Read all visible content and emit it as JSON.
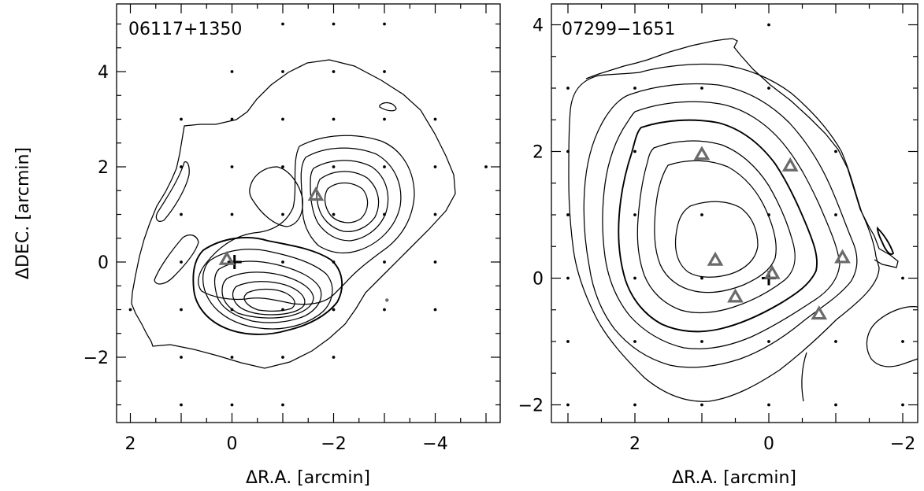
{
  "chart_data": [
    {
      "type": "contour",
      "title": "06117+1350",
      "xlabel": "ΔR.A. [arcmin]",
      "ylabel": "ΔDEC. [arcmin]",
      "xlim": [
        2.3,
        -5.3
      ],
      "ylim": [
        -3.2,
        5.3
      ],
      "x_ticks": [
        2,
        0,
        -2,
        -4
      ],
      "x_tick_labels": [
        "2",
        "0",
        "−2",
        "−4"
      ],
      "y_ticks": [
        -2,
        0,
        2,
        4
      ],
      "y_tick_labels": [
        "−2",
        "0",
        "2",
        "4"
      ],
      "grid_points": [
        [
          0,
          4
        ],
        [
          -1,
          4
        ],
        [
          -2,
          4
        ],
        [
          -3,
          4
        ],
        [
          -3,
          5
        ],
        [
          -2,
          5
        ],
        [
          -1,
          5
        ],
        [
          1,
          3
        ],
        [
          0,
          3
        ],
        [
          -1,
          3
        ],
        [
          -2,
          3
        ],
        [
          -3,
          3
        ],
        [
          -4,
          3
        ],
        [
          1,
          2
        ],
        [
          0,
          2
        ],
        [
          -1,
          2
        ],
        [
          -2,
          2
        ],
        [
          -3,
          2
        ],
        [
          -4,
          2
        ],
        [
          -5,
          2
        ],
        [
          1,
          1
        ],
        [
          0,
          1
        ],
        [
          -1,
          1
        ],
        [
          -2,
          1
        ],
        [
          -3,
          1
        ],
        [
          -4,
          1
        ],
        [
          1,
          0
        ],
        [
          -1,
          0
        ],
        [
          -2,
          0
        ],
        [
          -3,
          0
        ],
        [
          -4,
          0
        ],
        [
          2,
          -1
        ],
        [
          1,
          -1
        ],
        [
          0,
          -1
        ],
        [
          -1,
          -1
        ],
        [
          -2,
          -1
        ],
        [
          -3,
          -1
        ],
        [
          -4,
          -1
        ],
        [
          1,
          -2
        ],
        [
          0,
          -2
        ],
        [
          -1,
          -2
        ],
        [
          -2,
          -2
        ],
        [
          1,
          -3
        ],
        [
          0,
          -3
        ],
        [
          -1,
          -3
        ]
      ],
      "markers": [
        {
          "symbol": "triangle",
          "x": 0.1,
          "y": 0.05
        },
        {
          "symbol": "triangle",
          "x": -1.65,
          "y": 1.4
        }
      ],
      "center_marker": {
        "symbol": "cross",
        "x": -0.05,
        "y": 0.0
      },
      "extra_points": [
        {
          "x": -3.05,
          "y": -0.8
        }
      ]
    },
    {
      "type": "contour",
      "title": "07299−1651",
      "xlabel": "ΔR.A. [arcmin]",
      "ylabel": "",
      "xlim": [
        3.6,
        -2.2
      ],
      "ylim": [
        -2.3,
        4.2
      ],
      "x_ticks": [
        2,
        0,
        -2
      ],
      "x_tick_labels": [
        "2",
        "0",
        "−2"
      ],
      "y_ticks": [
        -2,
        0,
        2,
        4
      ],
      "y_tick_labels": [
        "−2",
        "0",
        "2",
        "4"
      ],
      "grid_points": [
        [
          0,
          4
        ],
        [
          3,
          3
        ],
        [
          2,
          3
        ],
        [
          1,
          3
        ],
        [
          0,
          3
        ],
        [
          3,
          2
        ],
        [
          2,
          2
        ],
        [
          -1,
          2
        ],
        [
          3,
          1
        ],
        [
          2,
          1
        ],
        [
          1,
          1
        ],
        [
          0,
          1
        ],
        [
          -1,
          1
        ],
        [
          3,
          0
        ],
        [
          2,
          0
        ],
        [
          1,
          0
        ],
        [
          -2,
          0
        ],
        [
          3,
          -1
        ],
        [
          2,
          -1
        ],
        [
          1,
          -1
        ],
        [
          0,
          -1
        ],
        [
          -1,
          -1
        ],
        [
          -2,
          -1
        ],
        [
          3,
          -2
        ],
        [
          2,
          -2
        ],
        [
          1,
          -2
        ],
        [
          0,
          -2
        ],
        [
          -1,
          -2
        ],
        [
          -2,
          -2
        ]
      ],
      "markers": [
        {
          "symbol": "triangle",
          "x": 1.0,
          "y": 1.95
        },
        {
          "symbol": "triangle",
          "x": -0.32,
          "y": 1.77
        },
        {
          "symbol": "triangle",
          "x": 0.8,
          "y": 0.28
        },
        {
          "symbol": "triangle",
          "x": -1.1,
          "y": 0.32
        },
        {
          "symbol": "triangle",
          "x": -0.05,
          "y": 0.07
        },
        {
          "symbol": "triangle",
          "x": 0.5,
          "y": -0.3
        },
        {
          "symbol": "triangle",
          "x": -0.75,
          "y": -0.57
        }
      ],
      "center_marker": {
        "symbol": "cross",
        "x": 0.0,
        "y": 0.0
      }
    }
  ]
}
